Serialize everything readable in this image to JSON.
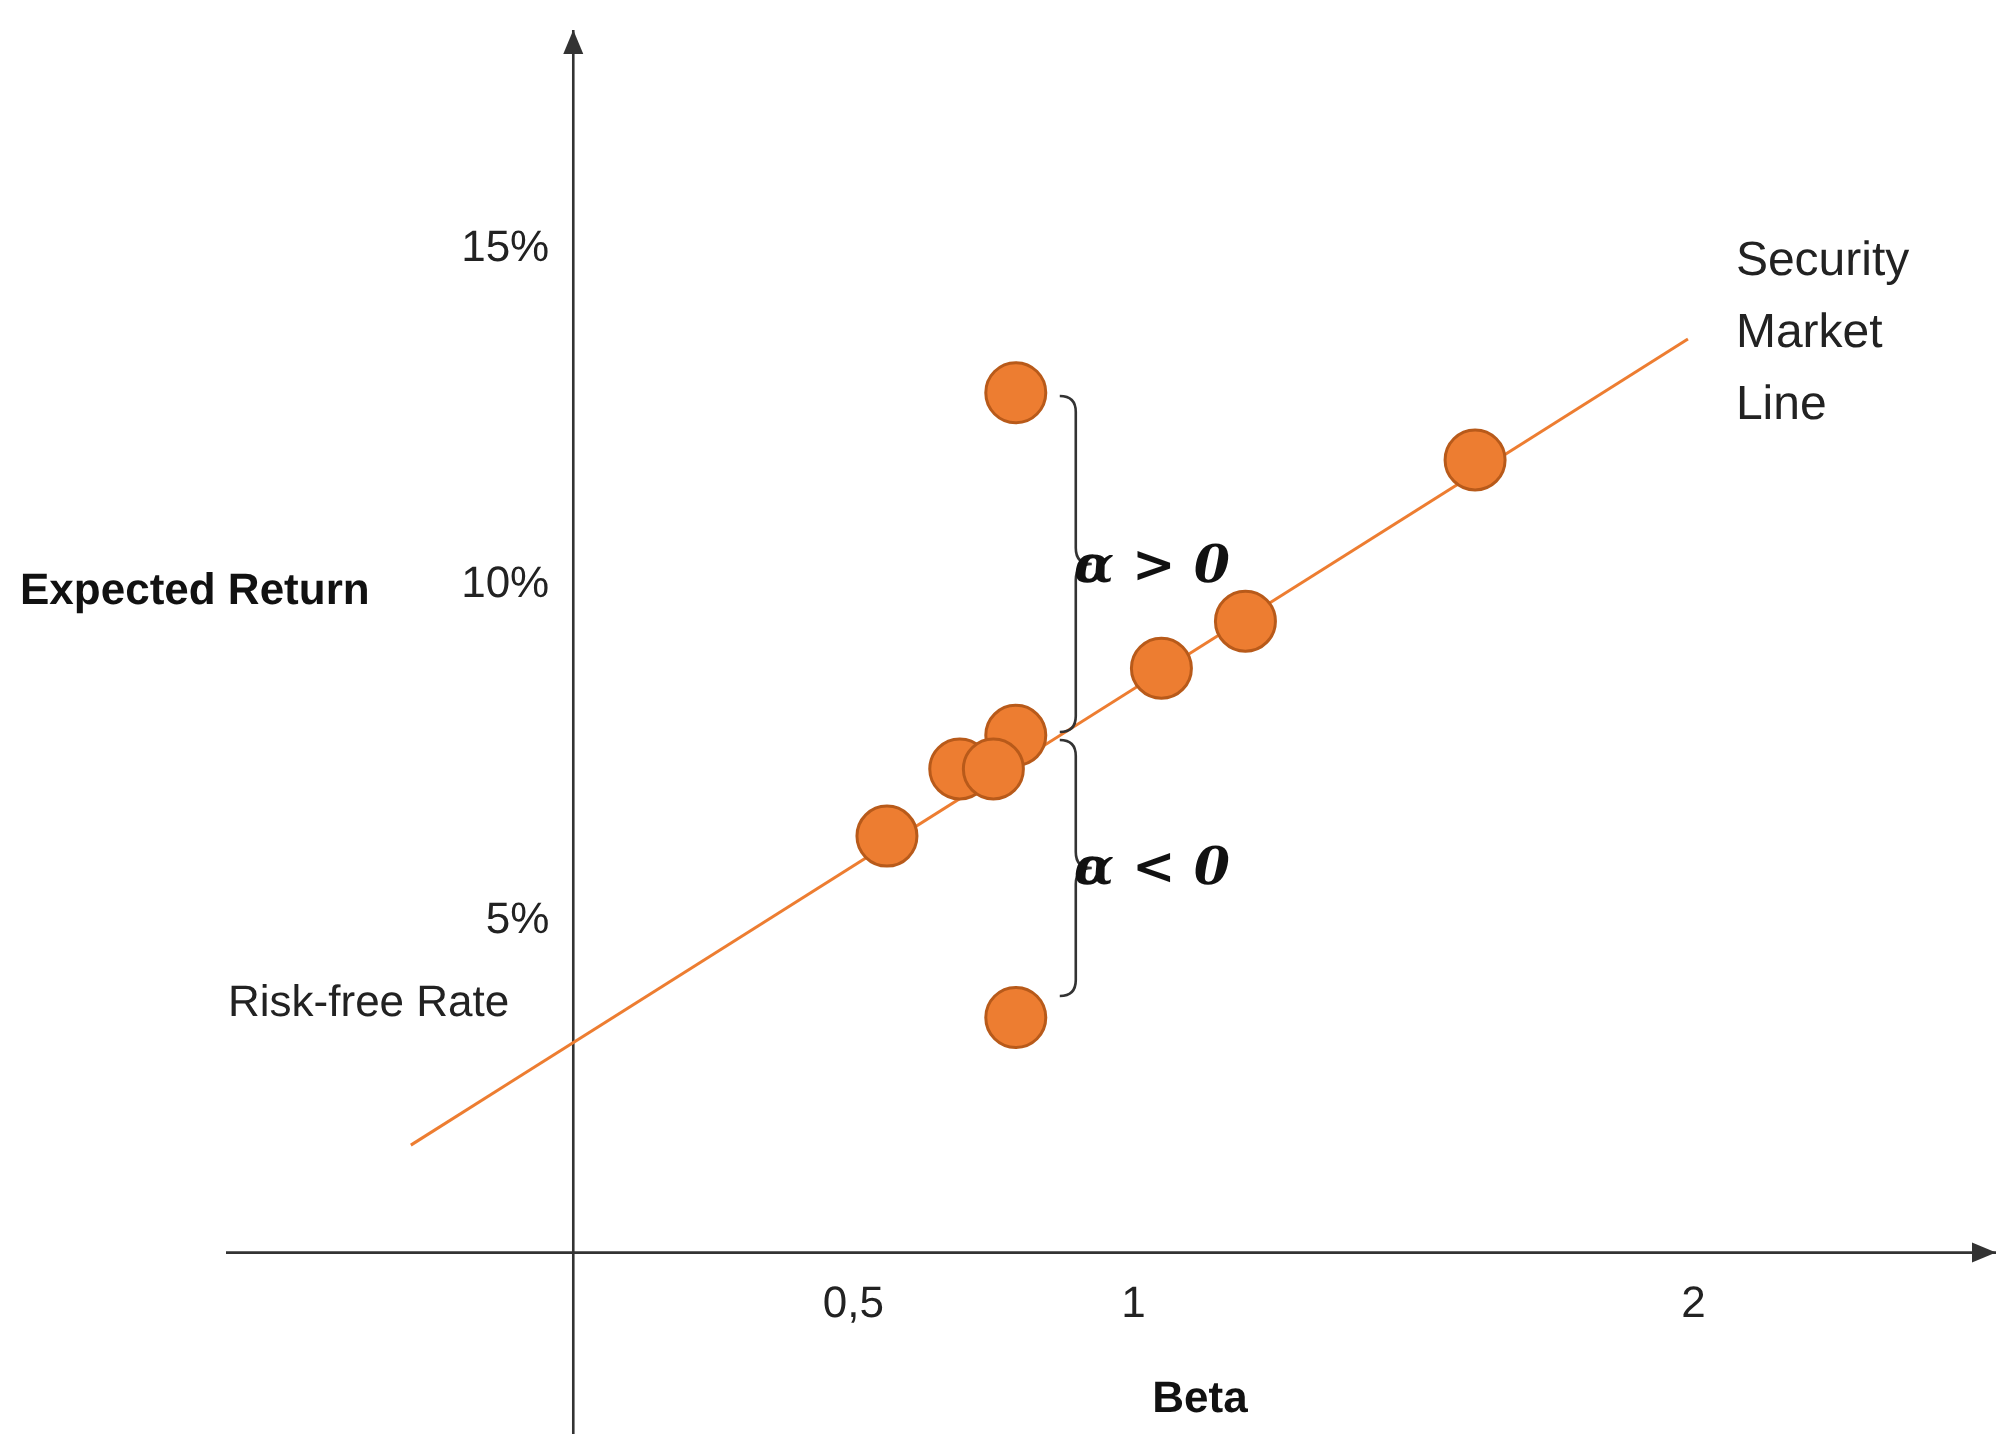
{
  "chart_data": {
    "type": "scatter",
    "xlabel": "Beta",
    "ylabel": "Expected Return",
    "xlim": [
      -0.62,
      2.54
    ],
    "ylim": [
      -2.7,
      18.2
    ],
    "xticks": [
      {
        "value": 0.5,
        "label": "0,5"
      },
      1,
      2
    ],
    "yticks": [
      {
        "value": 5,
        "label": "5%"
      },
      {
        "value": 10,
        "label": "10%"
      },
      {
        "value": 15,
        "label": "15%"
      }
    ],
    "grid": false,
    "legend": false,
    "marker": "circle",
    "series": [
      {
        "type": "line",
        "color": "#ed7d31",
        "marker": "none",
        "x": [
          -0.29,
          1.99
        ],
        "values": [
          1.6,
          13.6
        ]
      },
      {
        "color": "#ed7d31",
        "x": [
          0.79,
          1.61,
          1.2,
          1.05,
          0.79,
          0.69,
          0.75,
          0.56,
          0.79
        ],
        "values": [
          12.8,
          11.8,
          9.4,
          8.7,
          7.7,
          7.2,
          7.2,
          6.2,
          3.5
        ]
      }
    ],
    "annotations": [
      {
        "text": "Security Market Line",
        "x": 1.99,
        "y": 13.6
      },
      {
        "text": "Risk-free Rate",
        "x": 0,
        "y": 3.2
      },
      "α > 0",
      "α < 0"
    ]
  }
}
